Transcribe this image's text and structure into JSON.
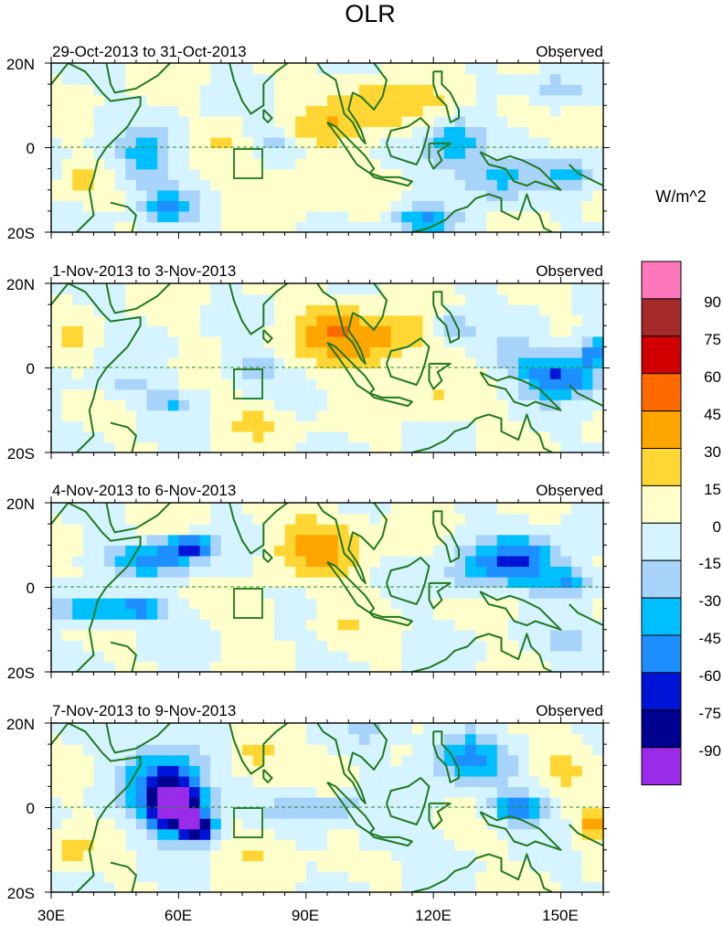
{
  "chart_data": {
    "type": "heatmap",
    "title": "OLR",
    "units_label": "W/m^2",
    "x_ticks": [
      "30E",
      "60E",
      "90E",
      "120E",
      "150E"
    ],
    "y_ticks": [
      "20N",
      "0",
      "20S"
    ],
    "x_values": [
      30,
      60,
      90,
      120,
      150
    ],
    "lon_range": [
      30,
      160
    ],
    "lat_range": [
      -20,
      20
    ],
    "colorbar": {
      "labels": [
        "90",
        "75",
        "60",
        "45",
        "30",
        "15",
        "0",
        "-15",
        "-30",
        "-45",
        "-60",
        "-75",
        "-90"
      ],
      "colors": [
        "#ff77bb",
        "#a52a2a",
        "#d10000",
        "#ff6a00",
        "#ffa500",
        "#ffd633",
        "#ffffcc",
        "#d6f4ff",
        "#a8d3fa",
        "#00bfff",
        "#1e8fff",
        "#0014d8",
        "#000090",
        "#9a2be8"
      ]
    },
    "panels": [
      {
        "date_range": "29-Oct-2013 to 31-Oct-2013",
        "label": "Observed"
      },
      {
        "date_range": "1-Nov-2013 to 3-Nov-2013",
        "label": "Observed"
      },
      {
        "date_range": "4-Nov-2013 to 6-Nov-2013",
        "label": "Observed"
      },
      {
        "date_range": "7-Nov-2013 to 9-Nov-2013",
        "label": "Observed"
      }
    ],
    "anomalies": [
      [
        [
          108,
          10,
          14,
          6,
          30
        ],
        [
          95,
          4,
          9,
          4,
          20
        ],
        [
          88,
          -8,
          14,
          4,
          17
        ],
        [
          70,
          2,
          6,
          4,
          12
        ],
        [
          140,
          10,
          6,
          4,
          15
        ],
        [
          125,
          1,
          7,
          6,
          -45
        ],
        [
          135,
          -7,
          9,
          5,
          -35
        ],
        [
          152,
          -6,
          7,
          4,
          -30
        ],
        [
          118,
          -17,
          7,
          3,
          -45
        ],
        [
          52,
          -2,
          7,
          7,
          -35
        ],
        [
          58,
          -14,
          6,
          4,
          -45
        ],
        [
          82,
          2,
          5,
          3,
          -20
        ],
        [
          148,
          14,
          8,
          4,
          -25
        ],
        [
          37,
          -8,
          4,
          3,
          20
        ]
      ],
      [
        [
          103,
          7,
          14,
          7,
          42
        ],
        [
          95,
          12,
          5,
          5,
          20
        ],
        [
          120,
          -8,
          9,
          4,
          17
        ],
        [
          78,
          -13,
          8,
          4,
          17
        ],
        [
          150,
          -2,
          9,
          5,
          -60
        ],
        [
          158,
          4,
          4,
          4,
          -55
        ],
        [
          125,
          10,
          4,
          3,
          -40
        ],
        [
          78,
          0,
          6,
          4,
          -25
        ],
        [
          48,
          -4,
          8,
          3,
          -20
        ],
        [
          58,
          -8,
          6,
          2,
          -30
        ],
        [
          140,
          3,
          8,
          5,
          -20
        ],
        [
          35,
          8,
          4,
          5,
          15
        ]
      ],
      [
        [
          93,
          10,
          10,
          7,
          38
        ],
        [
          55,
          7,
          12,
          4,
          -50
        ],
        [
          63,
          10,
          5,
          2,
          -70
        ],
        [
          40,
          -5,
          8,
          3,
          -55
        ],
        [
          52,
          -5,
          6,
          2,
          -65
        ],
        [
          140,
          6,
          11,
          6,
          -60
        ],
        [
          152,
          1,
          5,
          3,
          -45
        ],
        [
          128,
          3,
          6,
          6,
          -20
        ],
        [
          152,
          -13,
          7,
          4,
          -20
        ],
        [
          78,
          -6,
          4,
          3,
          17
        ],
        [
          98,
          -8,
          6,
          3,
          15
        ],
        [
          135,
          -3,
          5,
          3,
          15
        ],
        [
          105,
          -3,
          5,
          3,
          10
        ]
      ],
      [
        [
          57,
          5,
          9,
          10,
          -70
        ],
        [
          60,
          0,
          6,
          5,
          -85
        ],
        [
          65,
          -5,
          4,
          3,
          -80
        ],
        [
          128,
          12,
          9,
          6,
          -50
        ],
        [
          140,
          0,
          6,
          4,
          -55
        ],
        [
          92,
          0,
          16,
          3,
          -25
        ],
        [
          78,
          13,
          6,
          5,
          25
        ],
        [
          150,
          10,
          6,
          5,
          20
        ],
        [
          158,
          -4,
          4,
          4,
          40
        ],
        [
          78,
          -10,
          9,
          4,
          17
        ],
        [
          35,
          -10,
          5,
          4,
          20
        ],
        [
          110,
          -8,
          8,
          3,
          -15
        ],
        [
          105,
          18,
          7,
          3,
          -15
        ]
      ]
    ]
  }
}
